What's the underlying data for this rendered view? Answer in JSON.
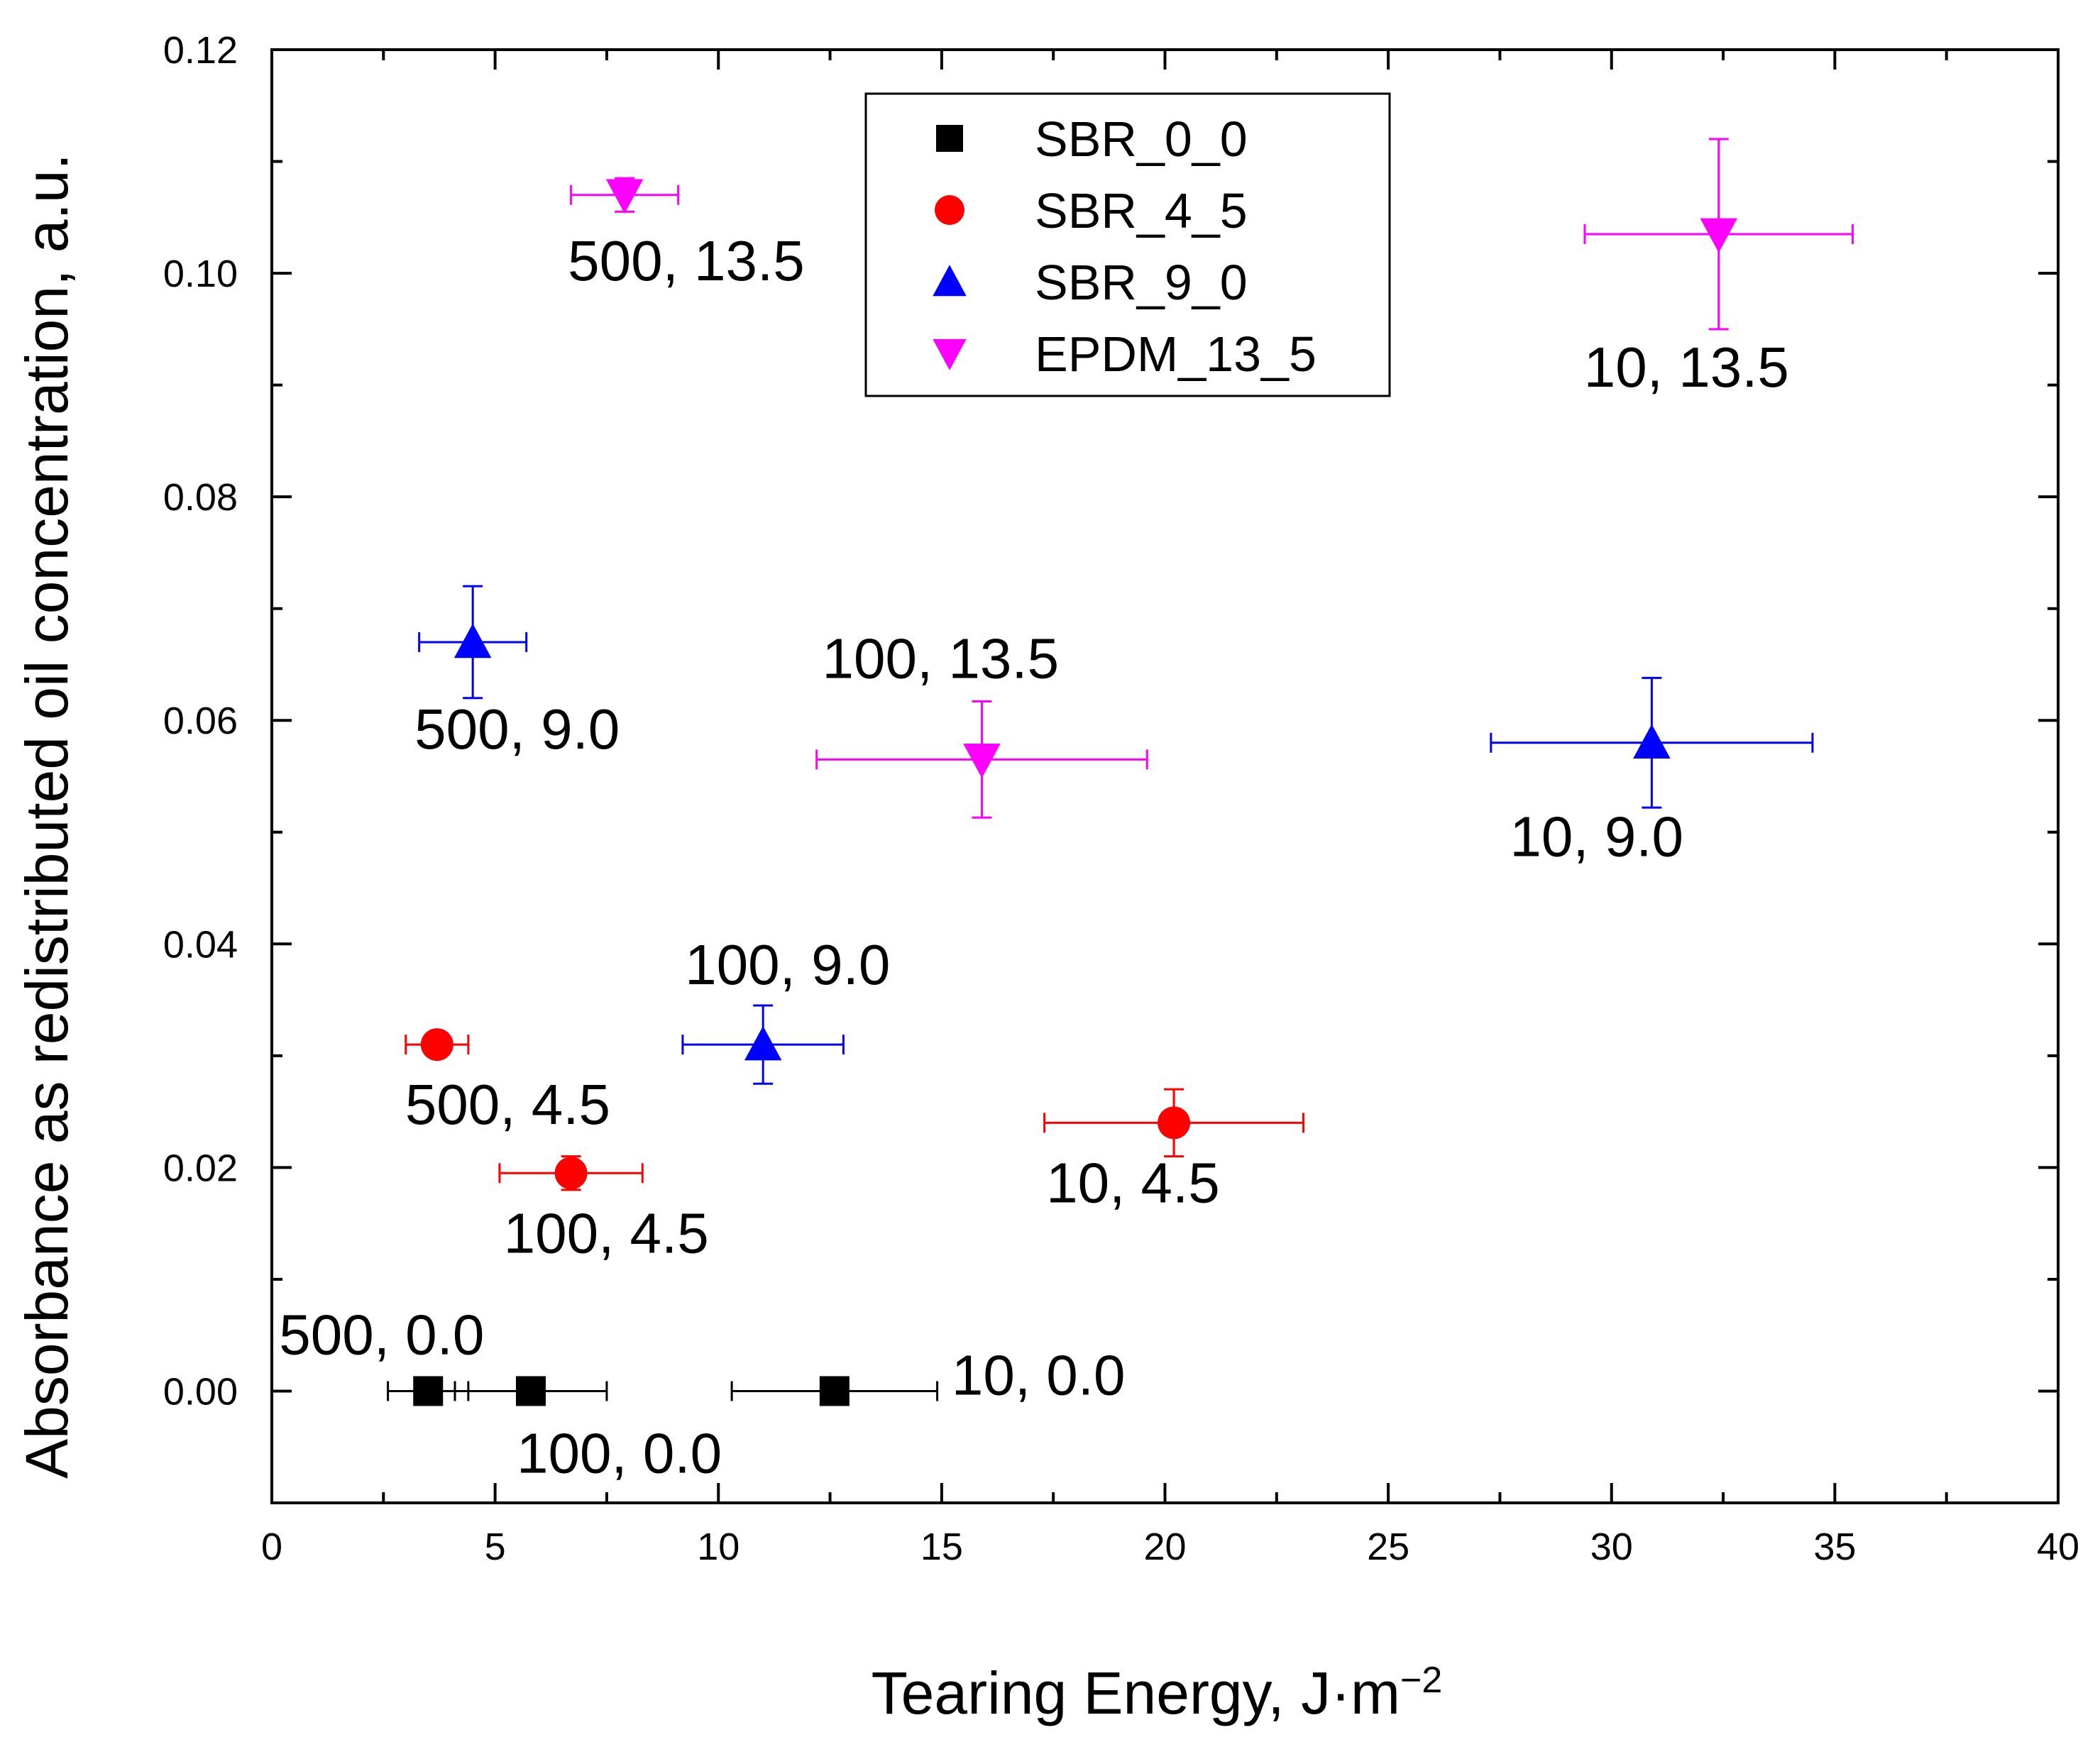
{
  "chart_data": {
    "type": "scatter",
    "xlabel": "Tearing Energy, J·m",
    "xlabel_superscript": "−2",
    "ylabel": "Absorbance as redistributed oil concentration, a.u.",
    "xlim": [
      0,
      40
    ],
    "ylim": [
      -0.01,
      0.12
    ],
    "x_ticks": [
      0,
      5,
      10,
      15,
      20,
      25,
      30,
      35,
      40
    ],
    "x_tick_labels": [
      "0",
      "5",
      "10",
      "15",
      "20",
      "25",
      "30",
      "35",
      "40"
    ],
    "y_ticks": [
      0.0,
      0.02,
      0.04,
      0.06,
      0.08,
      0.1,
      0.12
    ],
    "y_tick_labels": [
      "0.00",
      "0.02",
      "0.04",
      "0.06",
      "0.08",
      "0.10",
      "0.12"
    ],
    "grid": false,
    "legend_position": "top-center",
    "series": [
      {
        "name": "SBR_0_0",
        "marker": "square",
        "color": "#000000",
        "points": [
          {
            "x": 3.5,
            "y": 0.0,
            "xerr": 0.9,
            "yerr": 0.0,
            "label": "500, 0.0"
          },
          {
            "x": 5.8,
            "y": 0.0,
            "xerr": 1.7,
            "yerr": 0.0,
            "label": "100, 0.0"
          },
          {
            "x": 12.6,
            "y": 0.0,
            "xerr": 2.3,
            "yerr": 0.0,
            "label": "10, 0.0"
          }
        ]
      },
      {
        "name": "SBR_4_5",
        "marker": "circle",
        "color": "#ff0000",
        "points": [
          {
            "x": 3.7,
            "y": 0.031,
            "xerr": 0.7,
            "yerr": 0.0,
            "label": "500, 4.5"
          },
          {
            "x": 6.7,
            "y": 0.0195,
            "xerr": 1.6,
            "yerr": 0.0015,
            "label": "100, 4.5"
          },
          {
            "x": 20.2,
            "y": 0.024,
            "xerr": 2.9,
            "yerr": 0.003,
            "label": "10, 4.5"
          }
        ]
      },
      {
        "name": "SBR_9_0",
        "marker": "triangle-up",
        "color": "#0000ff",
        "points": [
          {
            "x": 4.5,
            "y": 0.067,
            "xerr": 1.2,
            "yerr": 0.005,
            "label": "500, 9.0"
          },
          {
            "x": 11.0,
            "y": 0.031,
            "xerr": 1.8,
            "yerr": 0.0035,
            "label": "100, 9.0"
          },
          {
            "x": 30.9,
            "y": 0.058,
            "xerr": 3.6,
            "yerr": 0.0058,
            "label": "10, 9.0"
          }
        ]
      },
      {
        "name": "EPDM_13_5",
        "marker": "triangle-down",
        "color": "#ff00ff",
        "points": [
          {
            "x": 7.9,
            "y": 0.107,
            "xerr": 1.2,
            "yerr": 0.0015,
            "label": "500, 13.5"
          },
          {
            "x": 15.9,
            "y": 0.0565,
            "xerr": 3.7,
            "yerr": 0.0052,
            "label": "100, 13.5"
          },
          {
            "x": 32.4,
            "y": 0.1035,
            "xerr": 3.0,
            "yerr": 0.0085,
            "label": "10, 13.5"
          }
        ]
      }
    ]
  }
}
